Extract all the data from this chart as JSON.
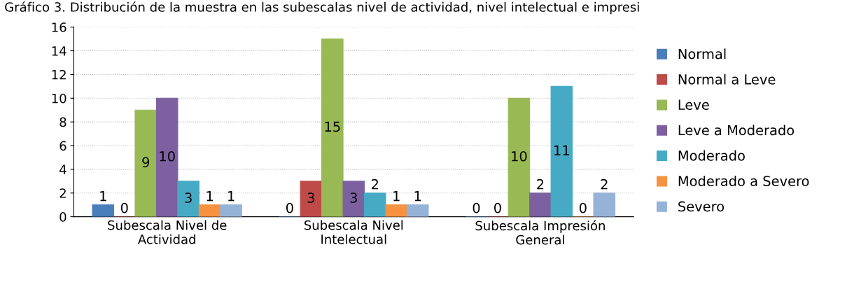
{
  "chart_data": {
    "type": "bar",
    "title": "Gráfico 3. Distribución de la muestra en las subescalas nivel de actividad, nivel intelectual e impresi",
    "categories": [
      "Subescala Nivel de\nActividad",
      "Subescala Nivel\nIntelectual",
      "Subescala Impresión\nGeneral"
    ],
    "series": [
      {
        "name": "Normal",
        "color": "#4a7ebb",
        "values": [
          1,
          0,
          0
        ]
      },
      {
        "name": "Normal a Leve",
        "color": "#be4b48",
        "values": [
          0,
          3,
          0
        ]
      },
      {
        "name": "Leve",
        "color": "#98b954",
        "values": [
          9,
          15,
          10
        ]
      },
      {
        "name": "Leve a Moderado",
        "color": "#7d60a0",
        "values": [
          10,
          3,
          2
        ]
      },
      {
        "name": "Moderado",
        "color": "#46aac5",
        "values": [
          3,
          2,
          11
        ]
      },
      {
        "name": "Moderado a Severo",
        "color": "#f69240",
        "values": [
          1,
          1,
          0
        ]
      },
      {
        "name": "Severo",
        "color": "#95b3d7",
        "values": [
          1,
          1,
          2
        ]
      }
    ],
    "ylim": [
      0,
      16
    ],
    "yticks": [
      0,
      2,
      4,
      6,
      8,
      10,
      12,
      14,
      16
    ],
    "grid": "y",
    "legend": "right",
    "data_labels": true
  }
}
